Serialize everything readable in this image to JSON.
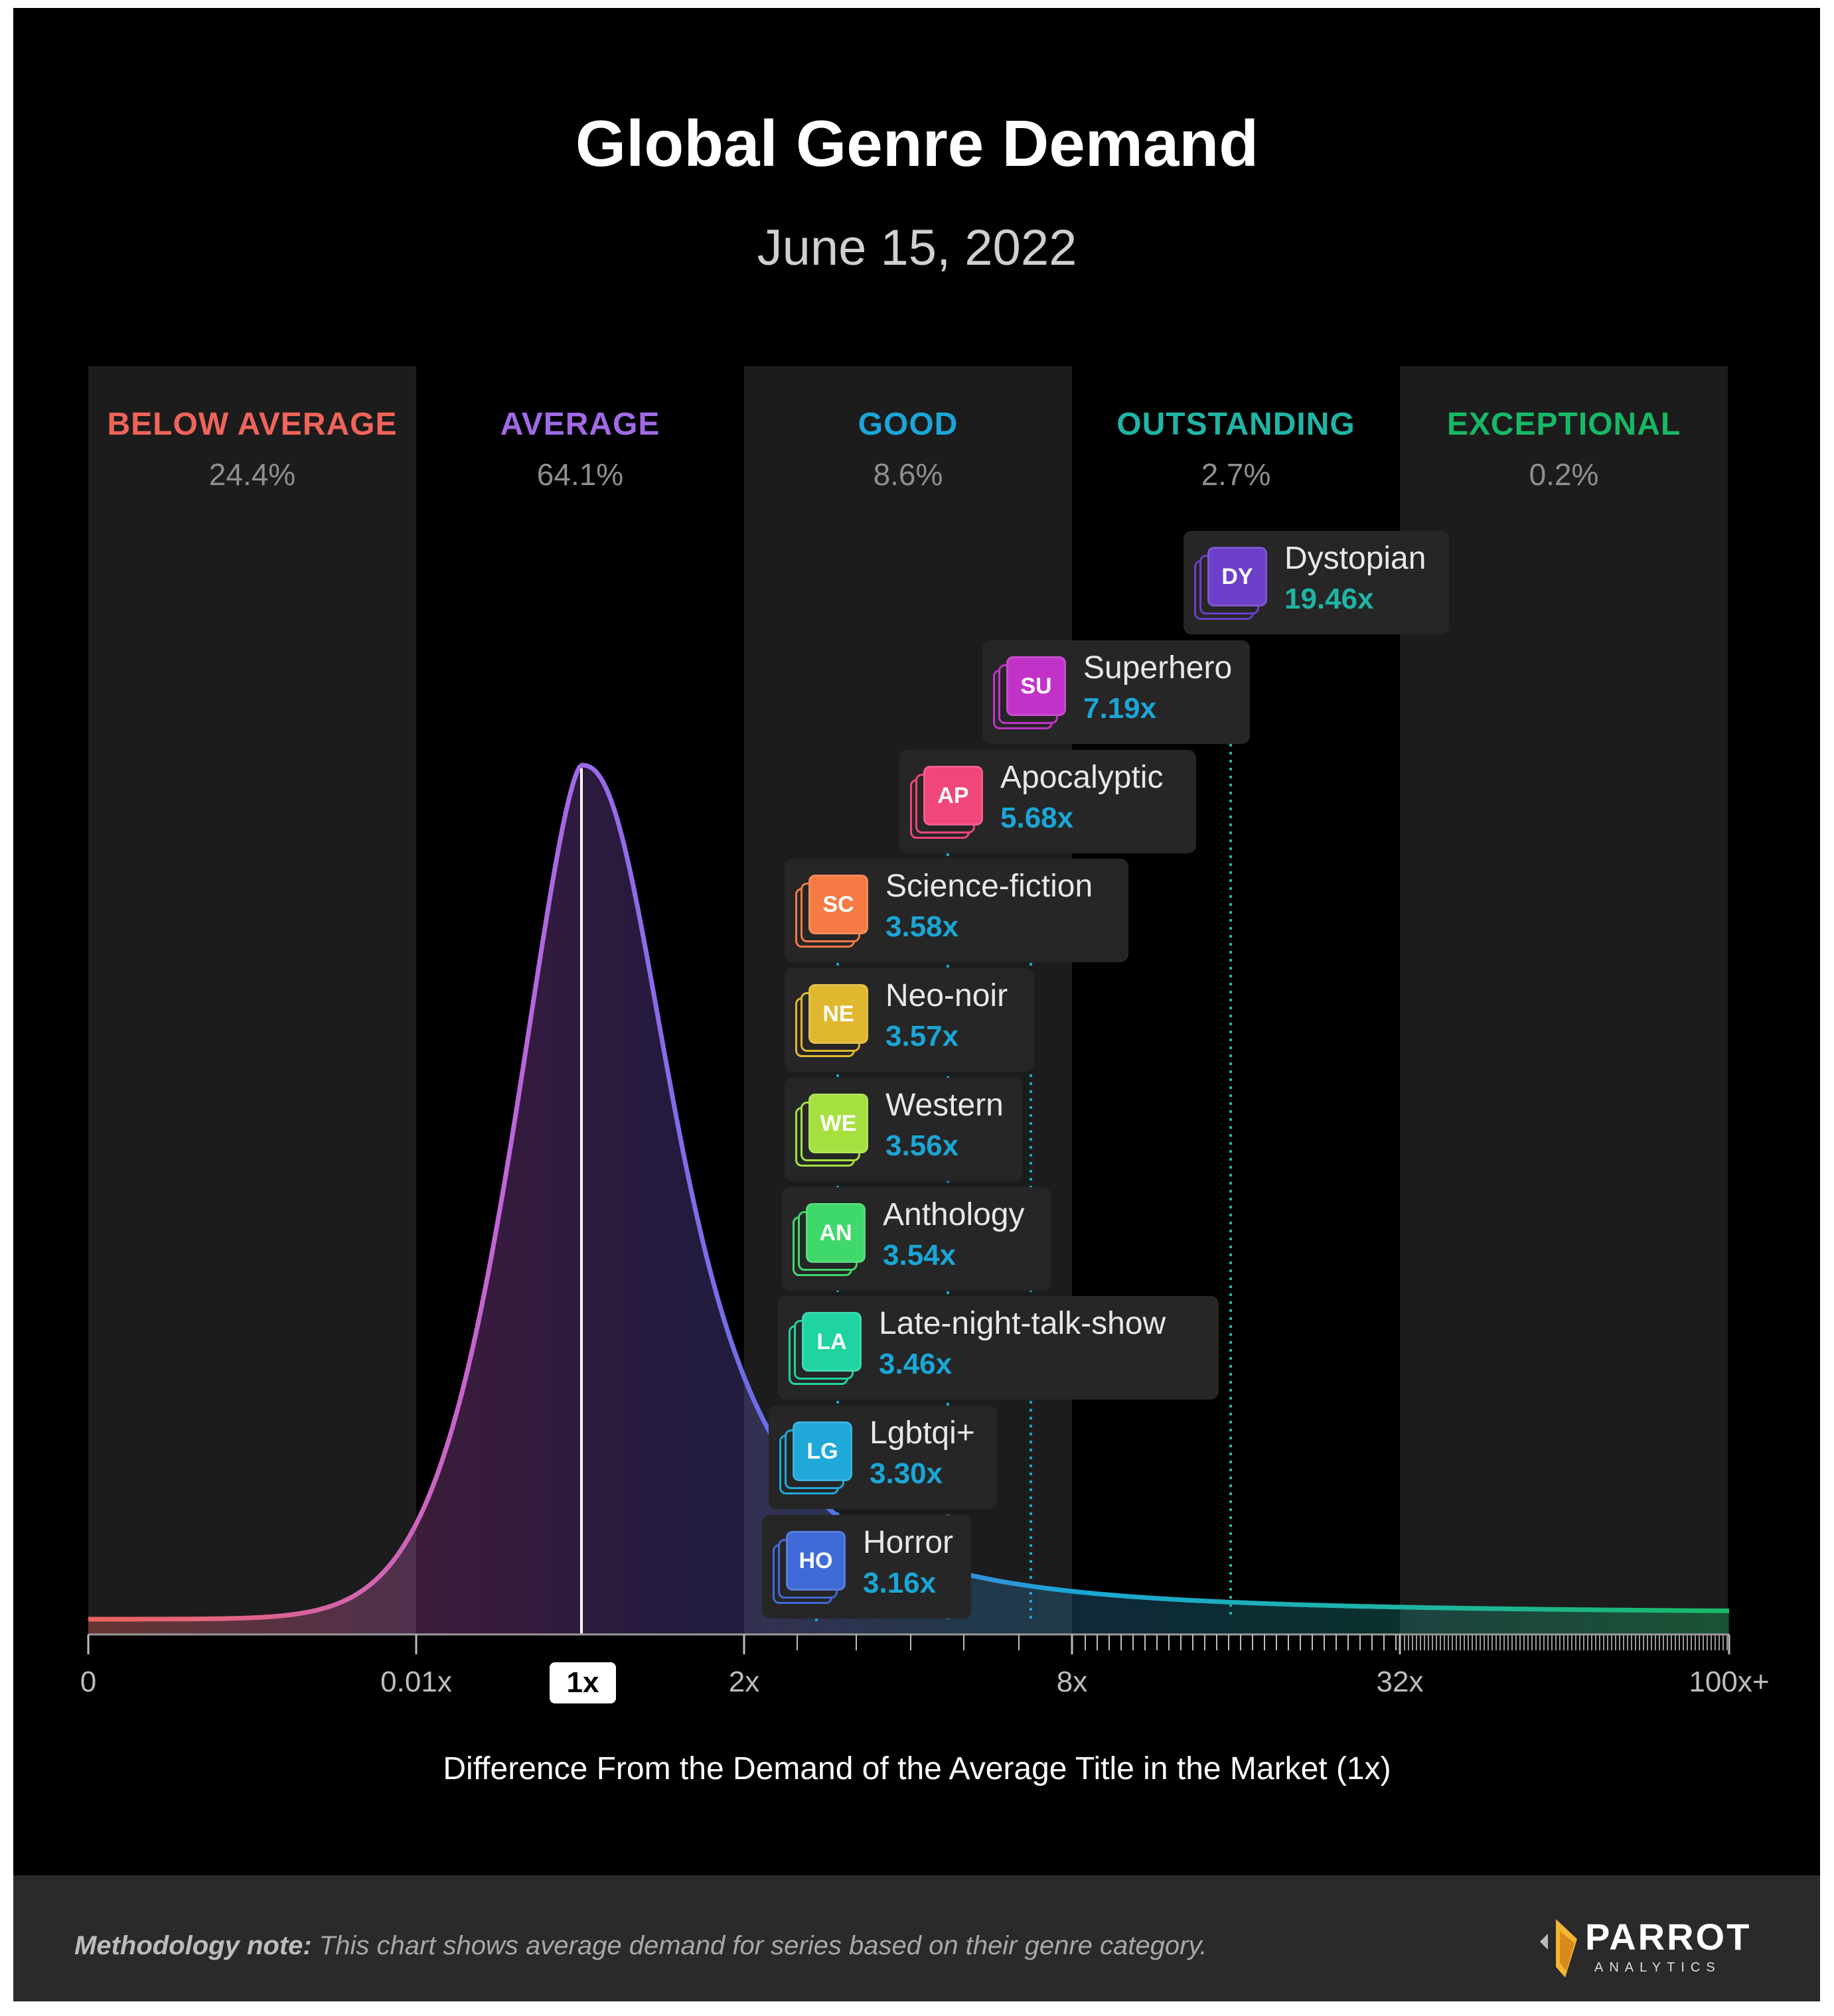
{
  "title": "Global Genre Demand",
  "subtitle": "June 15, 2022",
  "chart_data": {
    "type": "distribution",
    "title": "Global Genre Demand",
    "subtitle": "June 15, 2022",
    "xlabel": "Difference From the Demand of the Average Title in the Market (1x)",
    "x_ticks": [
      "0",
      "0.01x",
      "1x",
      "2x",
      "8x",
      "32x",
      "100x+"
    ],
    "highlighted_tick": "1x",
    "bands": [
      {
        "name": "BELOW AVERAGE",
        "share": "24.4%",
        "color": "#f0645a"
      },
      {
        "name": "AVERAGE",
        "share": "64.1%",
        "color": "#a06ae6"
      },
      {
        "name": "GOOD",
        "share": "8.6%",
        "color": "#1aa6d6"
      },
      {
        "name": "OUTSTANDING",
        "share": "2.7%",
        "color": "#1fb5a5"
      },
      {
        "name": "EXCEPTIONAL",
        "share": "0.2%",
        "color": "#17b865"
      }
    ],
    "genres": [
      {
        "code": "DY",
        "name": "Dystopian",
        "value": 19.46,
        "label": "19.46x",
        "color": "#6b3fc7",
        "value_color": "#1fb5a5"
      },
      {
        "code": "SU",
        "name": "Superhero",
        "value": 7.19,
        "label": "7.19x",
        "color": "#c133c8",
        "value_color": "#1aa6d6"
      },
      {
        "code": "AP",
        "name": "Apocalyptic",
        "value": 5.68,
        "label": "5.68x",
        "color": "#f0467a",
        "value_color": "#1aa6d6"
      },
      {
        "code": "SC",
        "name": "Science-fiction",
        "value": 3.58,
        "label": "3.58x",
        "color": "#f57a43",
        "value_color": "#1aa6d6"
      },
      {
        "code": "NE",
        "name": "Neo-noir",
        "value": 3.57,
        "label": "3.57x",
        "color": "#e0b830",
        "value_color": "#1aa6d6"
      },
      {
        "code": "WE",
        "name": "Western",
        "value": 3.56,
        "label": "3.56x",
        "color": "#a6e040",
        "value_color": "#1aa6d6"
      },
      {
        "code": "AN",
        "name": "Anthology",
        "value": 3.54,
        "label": "3.54x",
        "color": "#3fd86a",
        "value_color": "#1aa6d6"
      },
      {
        "code": "LA",
        "name": "Late-night-talk-show",
        "value": 3.46,
        "label": "3.46x",
        "color": "#1fd4a0",
        "value_color": "#1aa6d6"
      },
      {
        "code": "LG",
        "name": "Lgbtqi+",
        "value": 3.3,
        "label": "3.30x",
        "color": "#1fa8d8",
        "value_color": "#1aa6d6"
      },
      {
        "code": "HO",
        "name": "Horror",
        "value": 3.16,
        "label": "3.16x",
        "color": "#3f6ad8",
        "value_color": "#1aa6d6"
      }
    ]
  },
  "footer": {
    "method_bold": "Methodology note:",
    "method_text": " This chart shows average demand for series based on their genre category.",
    "logo_name": "PARROT",
    "logo_sub": "ANALYTICS"
  }
}
